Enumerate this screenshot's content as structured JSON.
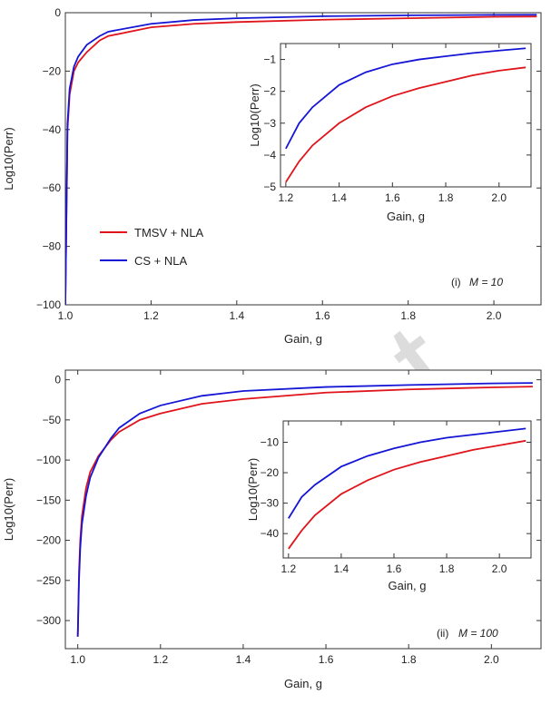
{
  "watermark": "uscript",
  "colors": {
    "tmsv": "#e0141b",
    "cs": "#1515d6",
    "axis": "#333333"
  },
  "legend": {
    "tmsv": "TMSV + NLA",
    "cs": "CS + NLA"
  },
  "chart_data": [
    {
      "id": "top-main",
      "type": "line",
      "panel_label": "(i)",
      "panel_param": "M = 10",
      "xlabel": "Gain, g",
      "ylabel": "Log10(Perr)",
      "xlim": [
        1.0,
        2.11
      ],
      "ylim": [
        -100,
        0
      ],
      "xticks": [
        1.0,
        1.2,
        1.4,
        1.6,
        1.8,
        2.0
      ],
      "yticks": [
        0,
        -20,
        -40,
        -60,
        -80,
        -100
      ],
      "series": [
        {
          "name": "TMSV + NLA",
          "color": "#e0141b",
          "x": [
            1.0,
            1.005,
            1.01,
            1.02,
            1.03,
            1.05,
            1.08,
            1.1,
            1.2,
            1.3,
            1.4,
            1.6,
            1.8,
            2.0,
            2.1
          ],
          "y": [
            -100,
            -40,
            -28,
            -20,
            -17,
            -13.5,
            -9.5,
            -8,
            -5,
            -3.8,
            -3.2,
            -2.4,
            -1.9,
            -1.4,
            -1.3
          ]
        },
        {
          "name": "CS + NLA",
          "color": "#1515d6",
          "x": [
            1.0,
            1.005,
            1.01,
            1.02,
            1.03,
            1.05,
            1.08,
            1.1,
            1.2,
            1.3,
            1.4,
            1.6,
            1.8,
            2.0,
            2.1
          ],
          "y": [
            -100,
            -38,
            -26,
            -18.5,
            -15,
            -11,
            -8,
            -6.5,
            -3.8,
            -2.5,
            -1.9,
            -1.2,
            -0.9,
            -0.75,
            -0.7
          ]
        }
      ]
    },
    {
      "id": "top-inset",
      "type": "line",
      "xlabel": "Gain, g",
      "ylabel": "Log10(Perr)",
      "xlim": [
        1.18,
        2.12
      ],
      "ylim": [
        -5,
        -0.5
      ],
      "xticks": [
        1.2,
        1.4,
        1.6,
        1.8,
        2.0
      ],
      "yticks": [
        -1,
        -2,
        -3,
        -4,
        -5
      ],
      "series": [
        {
          "name": "TMSV + NLA",
          "color": "#e0141b",
          "x": [
            1.2,
            1.25,
            1.3,
            1.4,
            1.5,
            1.6,
            1.7,
            1.8,
            1.9,
            2.0,
            2.1
          ],
          "y": [
            -4.85,
            -4.2,
            -3.7,
            -3.0,
            -2.5,
            -2.15,
            -1.9,
            -1.7,
            -1.5,
            -1.35,
            -1.25
          ]
        },
        {
          "name": "CS + NLA",
          "color": "#1515d6",
          "x": [
            1.2,
            1.25,
            1.3,
            1.4,
            1.5,
            1.6,
            1.7,
            1.8,
            1.9,
            2.0,
            2.1
          ],
          "y": [
            -3.8,
            -3.0,
            -2.5,
            -1.8,
            -1.4,
            -1.15,
            -1.0,
            -0.9,
            -0.8,
            -0.72,
            -0.65
          ]
        }
      ]
    },
    {
      "id": "bottom-main",
      "type": "line",
      "panel_label": "(ii)",
      "panel_param": "M = 100",
      "xlabel": "Gain, g",
      "ylabel": "Log10(Perr)",
      "xlim": [
        0.97,
        2.12
      ],
      "ylim": [
        -335,
        12
      ],
      "xticks": [
        1.0,
        1.2,
        1.4,
        1.6,
        1.8,
        2.0
      ],
      "yticks": [
        0,
        -50,
        -100,
        -150,
        -200,
        -250,
        -300
      ],
      "series": [
        {
          "name": "TMSV + NLA",
          "color": "#e0141b",
          "x": [
            1.0,
            1.003,
            1.006,
            1.01,
            1.02,
            1.03,
            1.05,
            1.08,
            1.1,
            1.15,
            1.2,
            1.3,
            1.4,
            1.6,
            1.8,
            2.0,
            2.1
          ],
          "y": [
            -320,
            -240,
            -200,
            -170,
            -135,
            -115,
            -95,
            -75,
            -65,
            -50,
            -42,
            -30,
            -24,
            -16,
            -12,
            -9.5,
            -8.5
          ]
        },
        {
          "name": "CS + NLA",
          "color": "#1515d6",
          "x": [
            1.0,
            1.003,
            1.006,
            1.01,
            1.02,
            1.03,
            1.05,
            1.08,
            1.1,
            1.15,
            1.2,
            1.3,
            1.4,
            1.6,
            1.8,
            2.0,
            2.1
          ],
          "y": [
            -320,
            -250,
            -210,
            -180,
            -145,
            -122,
            -97,
            -73,
            -60,
            -42,
            -32,
            -20,
            -14,
            -9,
            -6.5,
            -4.5,
            -4
          ]
        }
      ]
    },
    {
      "id": "bottom-inset",
      "type": "line",
      "xlabel": "Gain, g",
      "ylabel": "Log10(Perr)",
      "xlim": [
        1.18,
        2.12
      ],
      "ylim": [
        -48,
        -3
      ],
      "xticks": [
        1.2,
        1.4,
        1.6,
        1.8,
        2.0
      ],
      "yticks": [
        -10,
        -20,
        -30,
        -40
      ],
      "series": [
        {
          "name": "TMSV + NLA",
          "color": "#e0141b",
          "x": [
            1.2,
            1.25,
            1.3,
            1.4,
            1.5,
            1.6,
            1.7,
            1.8,
            1.9,
            2.0,
            2.1
          ],
          "y": [
            -45,
            -39,
            -34,
            -27,
            -22.5,
            -19,
            -16.5,
            -14.5,
            -12.5,
            -11,
            -9.5
          ]
        },
        {
          "name": "CS + NLA",
          "color": "#1515d6",
          "x": [
            1.2,
            1.25,
            1.3,
            1.4,
            1.5,
            1.6,
            1.7,
            1.8,
            1.9,
            2.0,
            2.1
          ],
          "y": [
            -35,
            -28,
            -24,
            -18,
            -14.5,
            -12,
            -10,
            -8.5,
            -7.5,
            -6.5,
            -5.5
          ]
        }
      ]
    }
  ]
}
